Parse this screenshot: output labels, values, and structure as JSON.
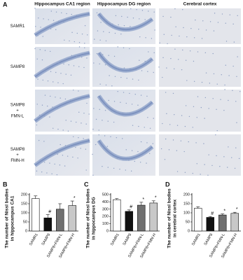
{
  "panel_a": {
    "label": "A",
    "columns": [
      "Hippocampus CA1 region",
      "Hippocampus DG region",
      "Cerebral cortex"
    ],
    "rows": [
      [
        "SAMR1"
      ],
      [
        "SAMP8"
      ],
      [
        "SAMP8",
        "+",
        "FMN-L"
      ],
      [
        "SAMP8",
        "+",
        "FMN-H"
      ]
    ]
  },
  "chart_data": [
    {
      "type": "bar",
      "panel": "B",
      "ylabel": [
        "The number of Nissl bodies",
        "in hippocampus CA1"
      ],
      "categories": [
        "SAMR1",
        "SAMP8",
        "SAMP8+FMN-L",
        "SAMP8+FMN-H"
      ],
      "values": [
        178,
        72,
        120,
        140
      ],
      "errors": [
        15,
        18,
        30,
        25
      ],
      "annotations": [
        null,
        "#",
        null,
        "*"
      ],
      "colors": [
        "#ffffff",
        "#111111",
        "#707070",
        "#c8c8c8"
      ],
      "ylim": [
        0,
        200
      ],
      "yticks": [
        0,
        50,
        100,
        150,
        200
      ]
    },
    {
      "type": "bar",
      "panel": "C",
      "ylabel": [
        "The number of Nissl bodies",
        "in hippocampus DG"
      ],
      "categories": [
        "SAMR1",
        "SAMP8",
        "SAMP8+FMN-L",
        "SAMP8+FMN-H"
      ],
      "values": [
        430,
        270,
        355,
        385
      ],
      "errors": [
        15,
        20,
        40,
        30
      ],
      "annotations": [
        null,
        "#",
        "*",
        "*"
      ],
      "colors": [
        "#ffffff",
        "#111111",
        "#707070",
        "#c8c8c8"
      ],
      "ylim": [
        0,
        500
      ],
      "yticks": [
        0,
        100,
        200,
        300,
        400,
        500
      ]
    },
    {
      "type": "bar",
      "panel": "D",
      "ylabel": [
        "The number of Nissl bodies",
        "in cerebral cortex"
      ],
      "categories": [
        "SAMR1",
        "SAMP8",
        "SAMP8+FMN-L",
        "SAMP8+FMN-H"
      ],
      "values": [
        125,
        75,
        88,
        97
      ],
      "errors": [
        8,
        5,
        6,
        6
      ],
      "annotations": [
        null,
        "#",
        "*",
        "*"
      ],
      "colors": [
        "#ffffff",
        "#111111",
        "#707070",
        "#c8c8c8"
      ],
      "ylim": [
        0,
        200
      ],
      "yticks": [
        0,
        50,
        100,
        150,
        200
      ]
    }
  ]
}
